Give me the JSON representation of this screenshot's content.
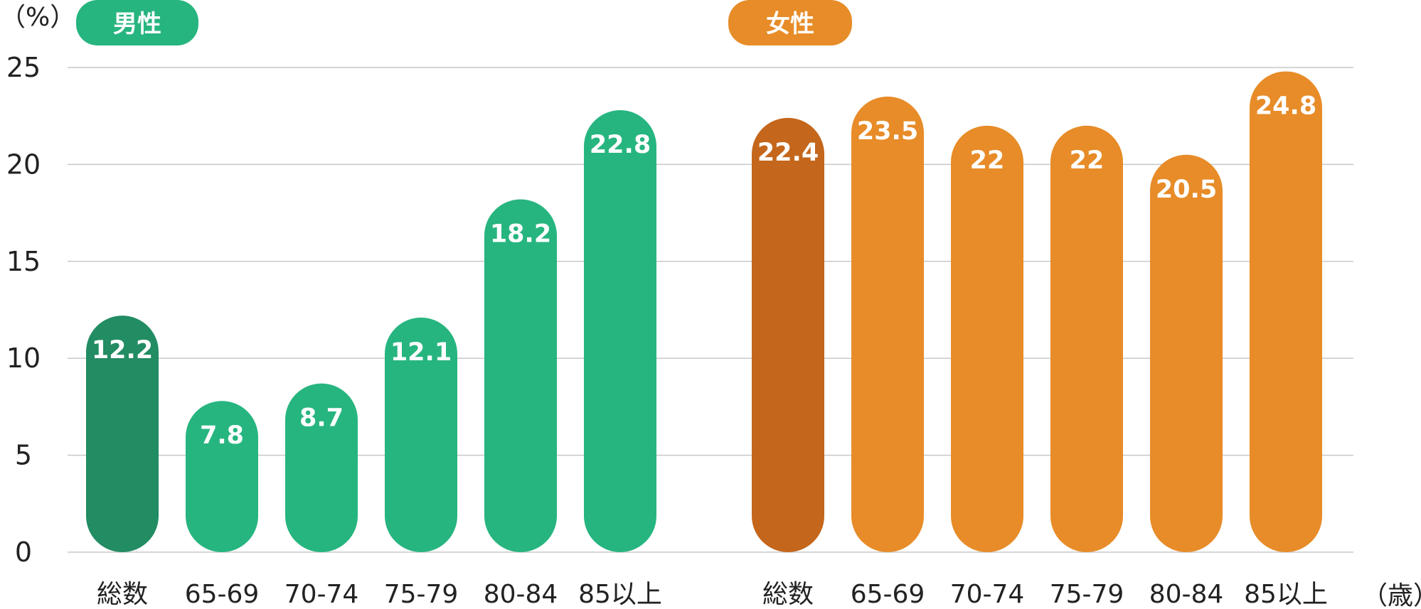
{
  "chart_data": {
    "type": "bar",
    "y_unit": "（%）",
    "x_unit": "（歳）",
    "ylim": [
      0,
      25
    ],
    "yticks": [
      0,
      5,
      10,
      15,
      20,
      25
    ],
    "grid": true,
    "groups": [
      {
        "name": "男性",
        "color": "#27b57f",
        "highlight_color": "#228c62",
        "categories": [
          "総数",
          "65-69",
          "70-74",
          "75-79",
          "80-84",
          "85以上"
        ],
        "values": [
          12.2,
          7.8,
          8.7,
          12.1,
          18.2,
          22.8
        ],
        "value_labels": [
          "12.2",
          "7.8",
          "8.7",
          "12.1",
          "18.2",
          "22.8"
        ]
      },
      {
        "name": "女性",
        "color": "#e78c28",
        "highlight_color": "#c4661b",
        "categories": [
          "総数",
          "65-69",
          "70-74",
          "75-79",
          "80-84",
          "85以上"
        ],
        "values": [
          22.4,
          23.5,
          22,
          22,
          20.5,
          24.8
        ],
        "value_labels": [
          "22.4",
          "23.5",
          "22",
          "22",
          "20.5",
          "24.8"
        ]
      }
    ]
  }
}
